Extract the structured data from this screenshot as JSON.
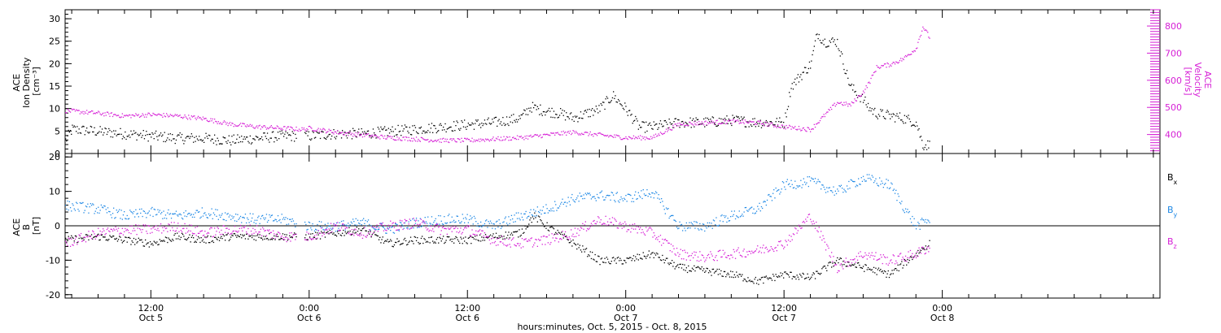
{
  "colors": {
    "density": "#000000",
    "velocity": "#d620d6",
    "bx": "#000000",
    "by": "#1e88e5",
    "bz": "#d620d6"
  },
  "chart_data": [
    {
      "type": "scatter",
      "panel": "top",
      "ylabel_lines": [
        "ACE",
        "Ion Density",
        "[cm⁻³]"
      ],
      "y2label_lines": [
        "ACE",
        "Velocity",
        "[km/s]"
      ],
      "ylim": [
        0,
        32
      ],
      "y2lim": [
        330,
        860
      ],
      "yticks": [
        0,
        5,
        10,
        15,
        20,
        25,
        30
      ],
      "y2ticks": [
        400,
        500,
        600,
        700,
        800
      ],
      "x_unit": "hours since 2015-10-05 00:00 UT",
      "xlim": [
        5.5,
        88.5
      ],
      "series": [
        {
          "key": "density",
          "x": [
            5.5,
            6,
            8,
            10,
            12,
            14,
            16,
            18,
            20,
            22,
            23.5,
            24,
            26,
            28,
            30,
            32,
            34,
            36,
            38,
            40,
            40.8,
            41.2,
            43,
            44,
            46,
            47,
            48,
            49,
            50,
            52,
            54,
            56,
            58,
            60,
            60.5,
            62,
            62.5,
            63,
            64,
            65,
            66,
            66.5,
            67,
            68,
            69,
            70,
            70.5,
            71
          ],
          "y": [
            3,
            5.5,
            5,
            4.5,
            4,
            3.5,
            3.5,
            3,
            3.5,
            4,
            4,
            4,
            4.5,
            4.5,
            5,
            5.5,
            6,
            6.5,
            7,
            8,
            10.5,
            10,
            9,
            8,
            10,
            13,
            10,
            6,
            6,
            7,
            7,
            7.5,
            7,
            7,
            15,
            20,
            27,
            25,
            25,
            15,
            12,
            10,
            9,
            8.5,
            8,
            7,
            2,
            2
          ]
        },
        {
          "key": "velocity",
          "x": [
            5.5,
            8,
            10,
            12,
            14,
            16,
            18,
            20,
            22,
            23.5,
            24,
            26,
            28,
            30,
            32,
            34,
            36,
            38,
            40,
            42,
            44,
            46,
            48,
            50,
            52,
            54,
            56,
            58,
            60,
            62,
            64,
            65,
            66,
            66.5,
            67,
            68,
            69,
            70,
            70.5,
            71
          ],
          "y": [
            490,
            480,
            470,
            475,
            470,
            460,
            440,
            430,
            425,
            420,
            425,
            410,
            400,
            390,
            385,
            380,
            380,
            385,
            390,
            400,
            410,
            400,
            390,
            390,
            440,
            445,
            450,
            445,
            430,
            420,
            520,
            510,
            560,
            600,
            650,
            660,
            680,
            720,
            800,
            760
          ]
        }
      ]
    },
    {
      "type": "scatter",
      "panel": "bottom",
      "ylabel_lines": [
        "ACE",
        "B",
        "[nT]"
      ],
      "ylim": [
        -21,
        21
      ],
      "yticks": [
        -20,
        -10,
        0,
        10,
        20
      ],
      "zero_line": true,
      "legend": [
        "Bx",
        "By",
        "Bz"
      ],
      "x_unit": "hours since 2015-10-05 00:00 UT",
      "xlim": [
        5.5,
        88.5
      ],
      "series": [
        {
          "key": "bx",
          "x": [
            5.5,
            8,
            10,
            12,
            14,
            16,
            18,
            20,
            22,
            24,
            26,
            28,
            30,
            32,
            34,
            36,
            38,
            40,
            41,
            42,
            44,
            46,
            48,
            50,
            52,
            54,
            56,
            58,
            60,
            62,
            64,
            66,
            68,
            70,
            71
          ],
          "y": [
            -4,
            -3,
            -4,
            -5,
            -3,
            -4,
            -3,
            -3,
            -3,
            -3,
            -2,
            -1,
            -5,
            -4,
            -4,
            -4,
            -3,
            -2,
            3,
            0,
            -5,
            -10,
            -10,
            -8,
            -12,
            -13,
            -14,
            -16,
            -14,
            -15,
            -10,
            -12,
            -14,
            -8,
            -5
          ]
        },
        {
          "key": "by",
          "x": [
            5.5,
            8,
            10,
            12,
            14,
            16,
            18,
            20,
            22,
            24,
            26,
            28,
            30,
            32,
            34,
            36,
            38,
            40,
            42,
            44,
            46,
            48,
            50,
            52,
            54,
            56,
            58,
            60,
            62,
            64,
            66,
            68,
            70,
            71
          ],
          "y": [
            6,
            5,
            3,
            4,
            3,
            4,
            3,
            2,
            2,
            0,
            0,
            1,
            -1,
            1,
            2,
            2,
            0,
            3,
            5,
            8,
            9,
            8,
            10,
            0,
            0,
            3,
            5,
            12,
            13,
            10,
            14,
            12,
            0,
            2
          ]
        },
        {
          "key": "bz",
          "x": [
            5.5,
            8,
            10,
            12,
            14,
            16,
            18,
            20,
            22,
            24,
            26,
            28,
            30,
            32,
            34,
            36,
            38,
            40,
            42,
            44,
            46,
            48,
            50,
            52,
            54,
            56,
            58,
            60,
            62,
            64,
            66,
            68,
            70,
            71
          ],
          "y": [
            -5,
            -2,
            -1,
            -1,
            0,
            -2,
            -1,
            -1,
            -3,
            -3,
            0,
            -2,
            0,
            1,
            -1,
            -1,
            -4,
            -5,
            -4,
            -2,
            2,
            0,
            -2,
            -8,
            -9,
            -8,
            -7,
            -5,
            3,
            -12,
            -8,
            -10,
            -8,
            -6
          ]
        }
      ]
    }
  ],
  "time_axis": {
    "major_ticks": [
      {
        "hour": 12,
        "time": "12:00",
        "date": "Oct 5"
      },
      {
        "hour": 24,
        "time": "0:00",
        "date": "Oct 6"
      },
      {
        "hour": 36,
        "time": "12:00",
        "date": "Oct 6"
      },
      {
        "hour": 48,
        "time": "0:00",
        "date": "Oct 7"
      },
      {
        "hour": 60,
        "time": "12:00",
        "date": "Oct 7"
      },
      {
        "hour": 72,
        "time": "0:00",
        "date": "Oct 8"
      }
    ],
    "title": "hours:minutes, Oct.  5, 2015 - Oct.  8, 2015"
  }
}
